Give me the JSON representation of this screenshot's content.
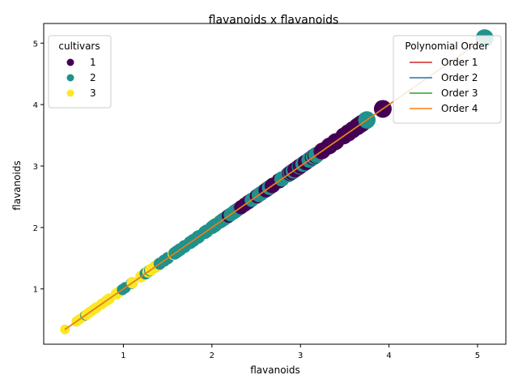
{
  "chart_data": {
    "type": "scatter",
    "title": "flavanoids x flavanoids",
    "xlabel": "flavanoids",
    "ylabel": "flavanoids",
    "xlim": [
      0.1,
      5.32
    ],
    "ylim": [
      0.1,
      5.32
    ],
    "xticks": [
      1,
      2,
      3,
      4,
      5
    ],
    "yticks": [
      1,
      2,
      3,
      4,
      5
    ],
    "grid": false,
    "legend_cultivars": {
      "title": "cultivars",
      "placement": "top-left",
      "entries": [
        {
          "label": "1",
          "color": "#440154"
        },
        {
          "label": "2",
          "color": "#21918c"
        },
        {
          "label": "3",
          "color": "#fde725"
        }
      ]
    },
    "legend_order": {
      "title": "Polynomial Order",
      "placement": "top-right",
      "entries": [
        {
          "label": "Order 1",
          "color": "#d62728"
        },
        {
          "label": "Order 2",
          "color": "#1f77b4"
        },
        {
          "label": "Order 3",
          "color": "#2ca02c"
        },
        {
          "label": "Order 4",
          "color": "#ff7f0e"
        }
      ]
    },
    "fit_range": [
      0.34,
      5.08
    ],
    "series": [
      {
        "name": "1",
        "color": "#440154",
        "values": [
          3.06,
          2.76,
          3.24,
          3.49,
          2.69,
          3.39,
          2.52,
          2.51,
          2.98,
          3.15,
          3.32,
          2.43,
          2.76,
          3.69,
          3.64,
          2.91,
          3.14,
          3.4,
          3.93,
          3.03,
          3.17,
          2.41,
          2.88,
          2.37,
          2.61,
          2.68,
          2.94,
          2.19,
          2.97,
          3.33,
          2.65,
          3.67,
          3.59,
          2.33,
          2.98,
          2.63,
          2.9,
          2.98,
          3.1,
          3.0,
          3.54,
          2.64,
          2.92,
          3.03,
          2.55,
          3.74,
          3.54,
          3.25
        ]
      },
      {
        "name": "2",
        "color": "#21918c",
        "values": [
          0.57,
          1.41,
          1.79,
          3.1,
          1.75,
          2.65,
          3.18,
          2.0,
          1.3,
          1.02,
          2.86,
          2.89,
          2.14,
          1.57,
          2.03,
          1.85,
          2.55,
          2.26,
          2.53,
          1.58,
          1.59,
          2.21,
          1.94,
          1.69,
          1.61,
          1.69,
          1.59,
          1.5,
          1.25,
          1.46,
          2.25,
          2.26,
          2.27,
          0.99,
          2.5,
          3.75,
          2.99,
          2.17,
          1.36,
          2.11,
          1.64,
          1.92,
          1.84,
          2.03,
          1.76,
          2.04,
          2.92,
          2.58,
          2.27,
          2.03,
          2.01,
          2.29,
          2.17,
          1.6,
          2.09,
          1.25,
          1.64,
          2.79,
          5.08,
          2.13,
          2.65,
          3.03,
          2.65,
          3.15,
          2.24,
          2.45,
          1.28,
          1.09,
          1.1,
          1.39,
          1.28
        ]
      },
      {
        "name": "3",
        "color": "#fde725",
        "values": [
          0.61,
          0.7,
          0.47,
          0.6,
          0.5,
          0.52,
          0.8,
          0.55,
          0.34,
          0.65,
          0.76,
          1.39,
          1.57,
          1.36,
          1.28,
          0.83,
          0.58,
          0.63,
          0.58,
          1.31,
          1.1,
          0.92,
          0.6,
          0.68,
          0.47,
          0.92,
          0.66,
          0.84,
          0.96,
          0.49,
          0.7,
          0.61,
          0.69,
          0.68,
          0.76,
          0.75,
          0.58,
          0.7,
          0.64,
          0.62,
          0.96,
          1.2,
          1.31,
          1.1,
          0.92,
          0.6,
          0.68,
          0.5
        ]
      }
    ]
  }
}
